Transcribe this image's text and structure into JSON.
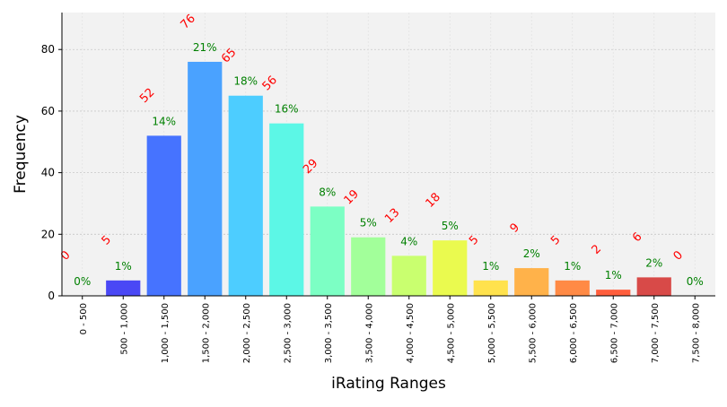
{
  "chart_data": {
    "type": "bar",
    "title": "",
    "xlabel": "iRating Ranges",
    "ylabel": "Frequency",
    "categories": [
      "0 - 500",
      "500 - 1,000",
      "1,000 - 1,500",
      "1,500 - 2,000",
      "2,000 - 2,500",
      "2,500 - 3,000",
      "3,000 - 3,500",
      "3,500 - 4,000",
      "4,000 - 4,500",
      "4,500 - 5,000",
      "5,000 - 5,500",
      "5,500 - 6,000",
      "6,000 - 6,500",
      "6,500 - 7,000",
      "7,000 - 7,500",
      "7,500 - 8,000"
    ],
    "values": [
      0,
      5,
      52,
      76,
      65,
      56,
      29,
      19,
      13,
      18,
      5,
      9,
      5,
      2,
      6,
      0
    ],
    "count_labels": [
      "0",
      "5",
      "52",
      "76",
      "65",
      "56",
      "29",
      "19",
      "13",
      "18",
      "5",
      "9",
      "5",
      "2",
      "6",
      "0"
    ],
    "percent_labels": [
      "0%",
      "1%",
      "14%",
      "21%",
      "18%",
      "16%",
      "8%",
      "5%",
      "4%",
      "5%",
      "1%",
      "2%",
      "1%",
      "1%",
      "2%",
      "0%"
    ],
    "bar_colors": [
      "#3b2bff",
      "#4a48f5",
      "#4673ff",
      "#4aa2ff",
      "#4dcdff",
      "#5cf7e6",
      "#7cffc4",
      "#a2ff9a",
      "#c9ff6f",
      "#eafa4f",
      "#ffe24d",
      "#ffb24a",
      "#ff8a45",
      "#ff5e3c",
      "#d84a48",
      "#c8302c"
    ],
    "count_label_color": "#ff0000",
    "percent_label_color": "#008000",
    "ylim": [
      0,
      92
    ],
    "yticks": [
      0,
      20,
      40,
      60,
      80
    ],
    "ytick_labels": [
      "0",
      "20",
      "40",
      "60",
      "80"
    ],
    "grid": true,
    "background": "#f2f2f2"
  }
}
